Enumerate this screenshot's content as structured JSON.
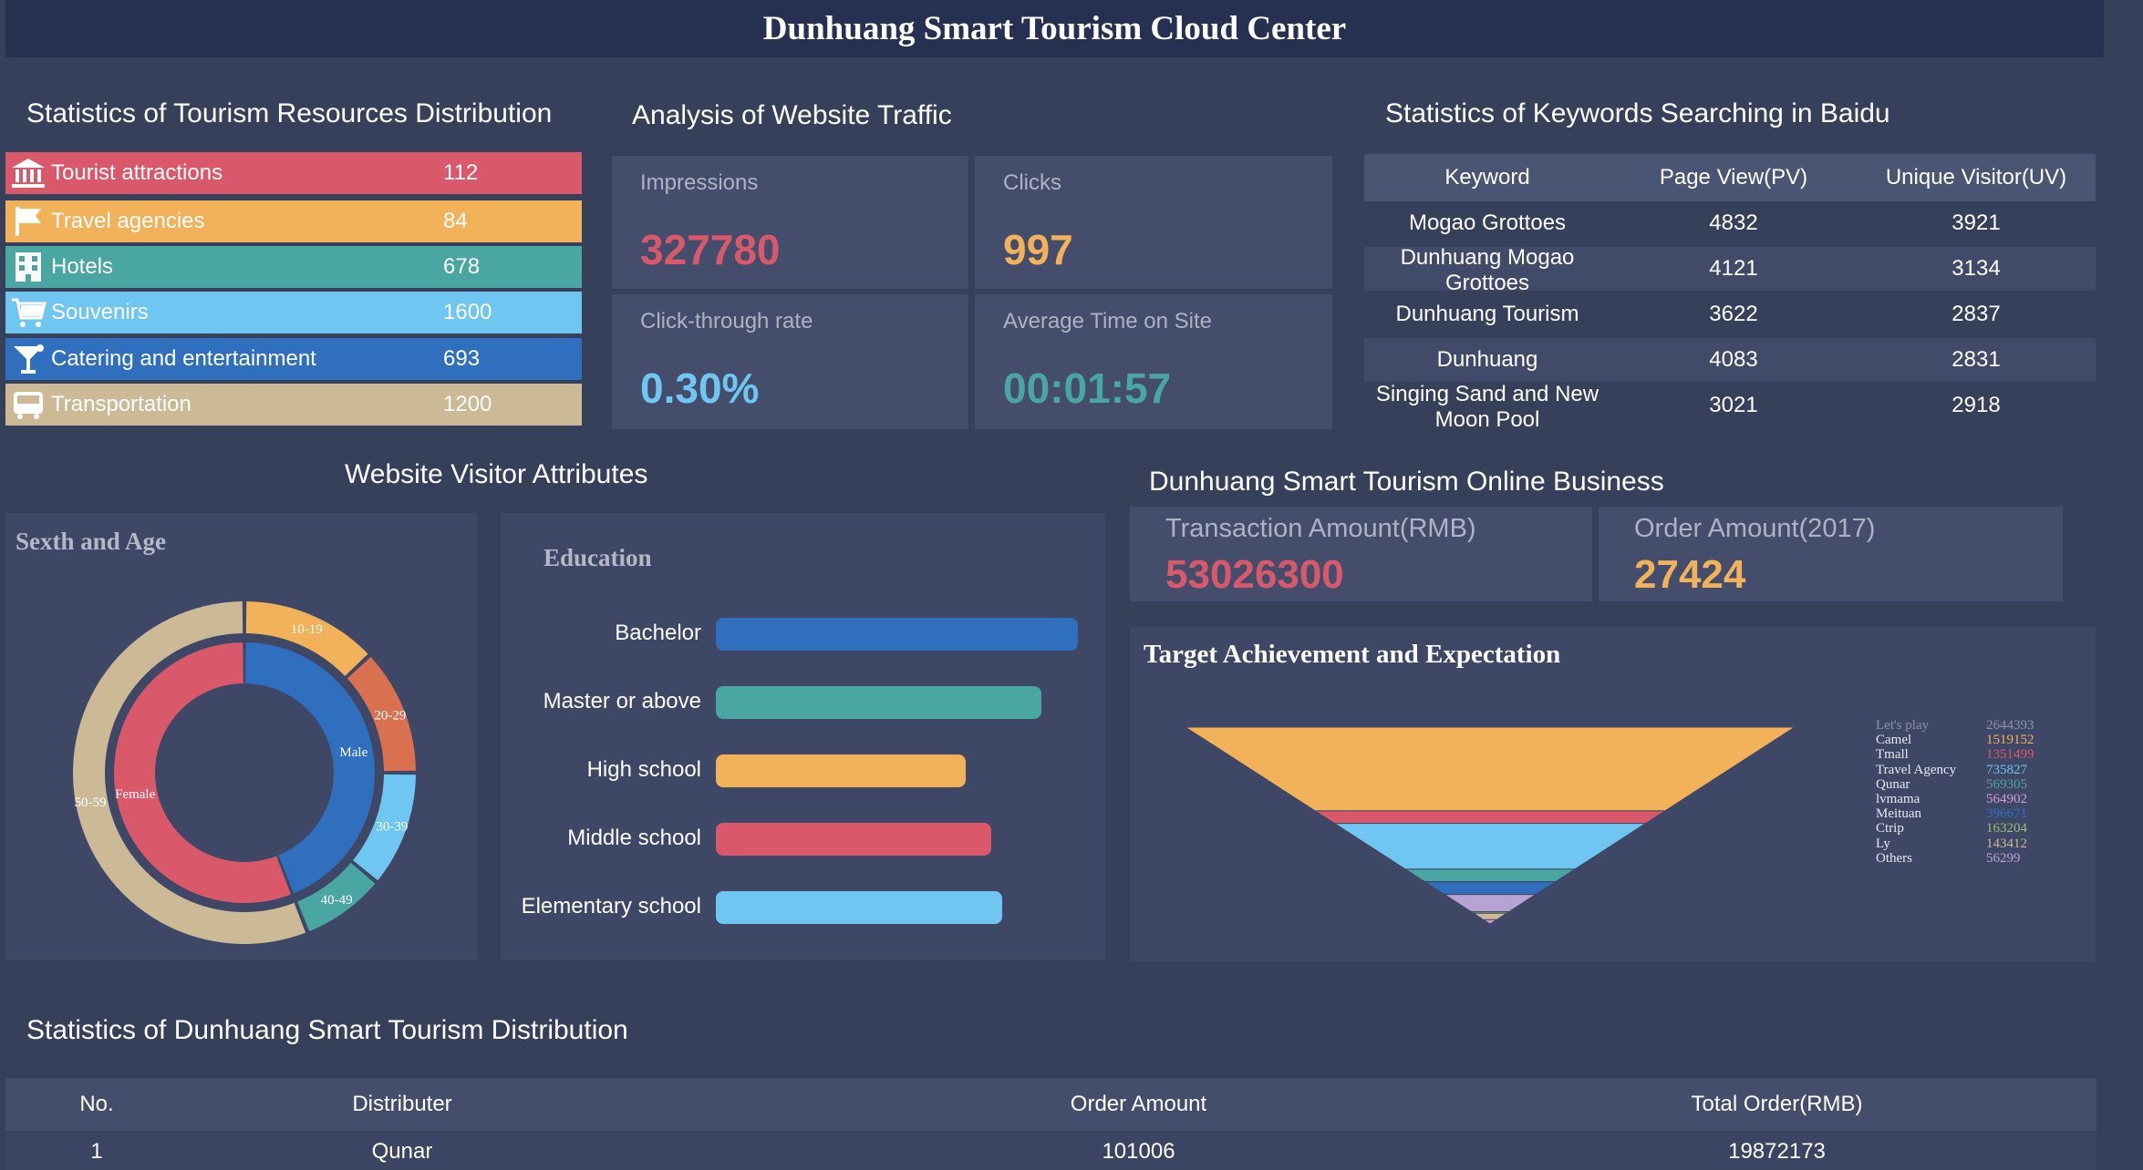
{
  "header": {
    "title": "Dunhuang Smart Tourism Cloud Center"
  },
  "resources": {
    "title": "Statistics of Tourism Resources Distribution",
    "items": [
      {
        "icon": "museum-icon",
        "label": "Tourist attractions",
        "value": "112",
        "color": "#d9596b"
      },
      {
        "icon": "flag-icon",
        "label": "Travel agencies",
        "value": "84",
        "color": "#f1b25a"
      },
      {
        "icon": "building-icon",
        "label": "Hotels",
        "value": "678",
        "color": "#4aa6a2"
      },
      {
        "icon": "cart-icon",
        "label": "Souvenirs",
        "value": "1600",
        "color": "#6ec6f1"
      },
      {
        "icon": "cocktail-icon",
        "label": "Catering and entertainment",
        "value": "693",
        "color": "#2f6fbe"
      },
      {
        "icon": "bus-icon",
        "label": "Transportation",
        "value": "1200",
        "color": "#ccb995"
      }
    ]
  },
  "traffic": {
    "title": "Analysis of Website Traffic",
    "cards": [
      {
        "label": "Impressions",
        "value": "327780",
        "color": "#d9596b"
      },
      {
        "label": "Clicks",
        "value": "997",
        "color": "#f1b25a"
      },
      {
        "label": "Click-through rate",
        "value": "0.30%",
        "color": "#6ec6f1"
      },
      {
        "label": "Average Time on Site",
        "value": "00:01:57",
        "color": "#4aa6a2"
      }
    ]
  },
  "keywords": {
    "title": "Statistics of Keywords Searching in Baidu",
    "headers": [
      "Keyword",
      "Page View(PV)",
      "Unique Visitor(UV)"
    ],
    "rows": [
      [
        "Mogao Grottoes",
        "4832",
        "3921"
      ],
      [
        "Dunhuang Mogao Grottoes",
        "4121",
        "3134"
      ],
      [
        "Dunhuang Tourism",
        "3622",
        "2837"
      ],
      [
        "Dunhuang",
        "4083",
        "2831"
      ],
      [
        "Singing Sand and New Moon Pool",
        "3021",
        "2918"
      ]
    ]
  },
  "visitor": {
    "title": "Website Visitor Attributes",
    "sex_age": {
      "title": "Sexth and Age",
      "inner": [
        {
          "label": "Male",
          "value": 44,
          "color": "#2f6fbe"
        },
        {
          "label": "Female",
          "value": 56,
          "color": "#d9596b"
        }
      ],
      "outer": [
        {
          "label": "10-19",
          "value": 13,
          "color": "#f1b25a"
        },
        {
          "label": "20-29",
          "value": 12,
          "color": "#d9704f"
        },
        {
          "label": "30-39",
          "value": 11,
          "color": "#6ec6f1"
        },
        {
          "label": "40-49",
          "value": 8,
          "color": "#4aa6a2"
        },
        {
          "label": "50-59",
          "value": 56,
          "color": "#ccb995"
        }
      ]
    },
    "education": {
      "title": "Education",
      "items": [
        {
          "label": "Bachelor",
          "value": 100,
          "color": "#2f6fbe"
        },
        {
          "label": "Master or above",
          "value": 90,
          "color": "#4aa6a2"
        },
        {
          "label": "High school",
          "value": 69,
          "color": "#f1b25a"
        },
        {
          "label": "Middle school",
          "value": 76,
          "color": "#d9596b"
        },
        {
          "label": "Elementary school",
          "value": 79,
          "color": "#6ec6f1"
        }
      ]
    }
  },
  "business": {
    "title": "Dunhuang Smart Tourism Online Business",
    "transaction_label": "Transaction Amount(RMB)",
    "transaction_value": "53026300",
    "order_label": "Order Amount(2017)",
    "order_value": "27424"
  },
  "chart_data": {
    "type": "funnel",
    "title": "Target Achievement and Expectation",
    "categories": [
      "Let's play",
      "Camel",
      "Tmall",
      "Travel Agency",
      "Qunar",
      "lvmama",
      "Meituan",
      "Ctrip",
      "Ly",
      "Others"
    ],
    "values": [
      2644393,
      1519152,
      1351499,
      735827,
      569305,
      564902,
      396671,
      163204,
      143412,
      56299
    ],
    "colors": [
      "#f1b25a",
      "#d9596b",
      "#6ec6f1",
      "#4aa6a2",
      "#6ec6f1",
      "#2f6fbe",
      "#b7a2d4",
      "#9ac06a",
      "#ccb995",
      "#d39bd8"
    ],
    "value_colors": [
      "#8d93a8",
      "#f1b25a",
      "#d9596b",
      "#6ec6f1",
      "#4aa6a2",
      "#d39bd8",
      "#2f6fbe",
      "#9ac06a",
      "#ccb995",
      "#b7a2d4"
    ]
  },
  "distribution": {
    "title": "Statistics of Dunhuang Smart Tourism Distribution",
    "headers": [
      "No.",
      "Distributer",
      "Order Amount",
      "Total Order(RMB)"
    ],
    "rows": [
      [
        "1",
        "Qunar",
        "101006",
        "19872173"
      ]
    ]
  }
}
